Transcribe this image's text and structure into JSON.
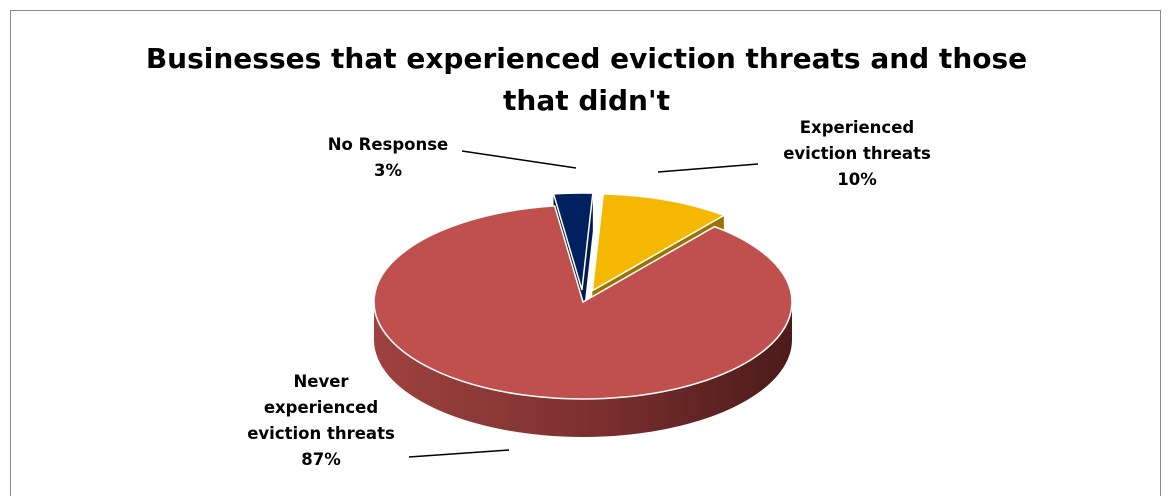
{
  "chart_data": {
    "type": "pie",
    "title_lines": [
      "Businesses that experienced eviction threats and those",
      "that didn't"
    ],
    "slices": [
      {
        "category_lines": [
          "Experienced",
          "eviction threats"
        ],
        "value": 10,
        "value_label": "10%",
        "color": "#f5b800"
      },
      {
        "category_lines": [
          "Never",
          "experienced",
          "eviction threats"
        ],
        "value": 87,
        "value_label": "87%",
        "color": "#c0504d"
      },
      {
        "category_lines": [
          "No Response"
        ],
        "value": 3,
        "value_label": "3%",
        "color": "#002060"
      }
    ],
    "style": "3d-exploded",
    "legend": "none"
  }
}
